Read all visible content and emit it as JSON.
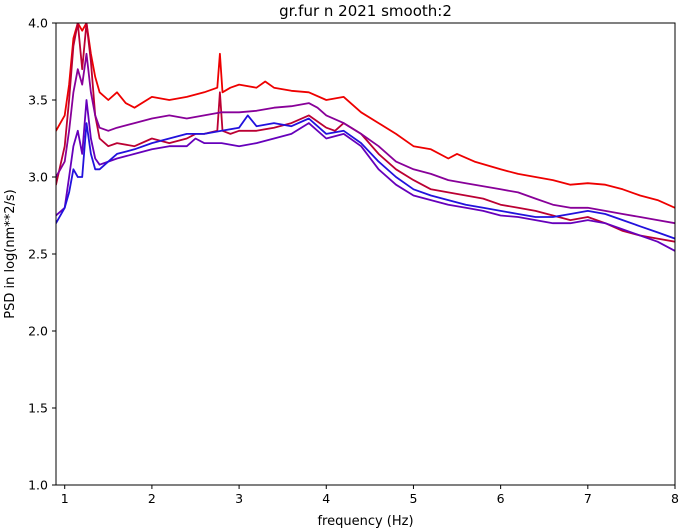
{
  "chart_data": {
    "type": "line",
    "title": "gr.fur n 2021 smooth:2",
    "xlabel": "frequency (Hz)",
    "ylabel": "PSD in log(nm**2/s)",
    "xlim": [
      0.9,
      8.0
    ],
    "ylim": [
      1.0,
      4.0
    ],
    "xticks": [
      1,
      2,
      3,
      4,
      5,
      6,
      7,
      8
    ],
    "xtick_labels": [
      "1",
      "2",
      "3",
      "4",
      "5",
      "6",
      "7",
      "8"
    ],
    "yticks": [
      1.0,
      1.5,
      2.0,
      2.5,
      3.0,
      3.5,
      4.0
    ],
    "ytick_labels": [
      "1.0",
      "1.5",
      "2.0",
      "2.5",
      "3.0",
      "3.5",
      "4.0"
    ],
    "grid": false,
    "legend": "none",
    "series": [
      {
        "color": "#ee0000",
        "x": [
          0.9,
          1.0,
          1.05,
          1.1,
          1.15,
          1.2,
          1.25,
          1.3,
          1.35,
          1.4,
          1.5,
          1.6,
          1.7,
          1.8,
          2.0,
          2.2,
          2.4,
          2.6,
          2.75,
          2.78,
          2.81,
          2.9,
          3.0,
          3.2,
          3.3,
          3.4,
          3.6,
          3.8,
          4.0,
          4.2,
          4.4,
          4.6,
          4.8,
          5.0,
          5.2,
          5.4,
          5.5,
          5.7,
          6.0,
          6.2,
          6.4,
          6.6,
          6.8,
          7.0,
          7.2,
          7.4,
          7.6,
          7.8,
          8.0
        ],
        "y": [
          3.3,
          3.4,
          3.6,
          3.9,
          4.0,
          3.95,
          4.0,
          3.8,
          3.65,
          3.55,
          3.5,
          3.55,
          3.48,
          3.45,
          3.52,
          3.5,
          3.52,
          3.55,
          3.58,
          3.8,
          3.55,
          3.58,
          3.6,
          3.58,
          3.62,
          3.58,
          3.56,
          3.55,
          3.5,
          3.52,
          3.42,
          3.35,
          3.28,
          3.2,
          3.18,
          3.12,
          3.15,
          3.1,
          3.05,
          3.02,
          3.0,
          2.98,
          2.95,
          2.96,
          2.95,
          2.92,
          2.88,
          2.85,
          2.8
        ]
      },
      {
        "color": "#bb0033",
        "x": [
          0.9,
          1.0,
          1.05,
          1.1,
          1.15,
          1.2,
          1.25,
          1.3,
          1.35,
          1.4,
          1.5,
          1.6,
          1.8,
          2.0,
          2.2,
          2.4,
          2.5,
          2.6,
          2.75,
          2.78,
          2.81,
          2.9,
          3.0,
          3.2,
          3.4,
          3.6,
          3.8,
          4.0,
          4.1,
          4.2,
          4.4,
          4.6,
          4.8,
          5.0,
          5.2,
          5.4,
          5.6,
          5.8,
          6.0,
          6.2,
          6.4,
          6.6,
          6.8,
          7.0,
          7.2,
          7.4,
          7.6,
          7.8,
          8.0
        ],
        "y": [
          2.95,
          3.2,
          3.5,
          3.85,
          4.0,
          3.7,
          4.0,
          3.75,
          3.4,
          3.25,
          3.2,
          3.22,
          3.2,
          3.25,
          3.22,
          3.25,
          3.28,
          3.28,
          3.3,
          3.55,
          3.3,
          3.28,
          3.3,
          3.3,
          3.32,
          3.35,
          3.4,
          3.32,
          3.3,
          3.35,
          3.28,
          3.15,
          3.05,
          2.98,
          2.92,
          2.9,
          2.88,
          2.86,
          2.82,
          2.8,
          2.78,
          2.75,
          2.72,
          2.74,
          2.7,
          2.65,
          2.62,
          2.6,
          2.58
        ]
      },
      {
        "color": "#880099",
        "x": [
          0.9,
          1.0,
          1.05,
          1.1,
          1.15,
          1.2,
          1.25,
          1.3,
          1.35,
          1.4,
          1.5,
          1.6,
          1.8,
          2.0,
          2.2,
          2.4,
          2.6,
          2.8,
          3.0,
          3.2,
          3.4,
          3.6,
          3.8,
          3.9,
          4.0,
          4.2,
          4.4,
          4.6,
          4.8,
          5.0,
          5.2,
          5.4,
          5.6,
          5.8,
          6.0,
          6.2,
          6.4,
          6.6,
          6.8,
          7.0,
          7.2,
          7.4,
          7.6,
          7.8,
          8.0
        ],
        "y": [
          3.0,
          3.1,
          3.3,
          3.55,
          3.7,
          3.6,
          3.8,
          3.55,
          3.4,
          3.32,
          3.3,
          3.32,
          3.35,
          3.38,
          3.4,
          3.38,
          3.4,
          3.42,
          3.42,
          3.43,
          3.45,
          3.46,
          3.48,
          3.45,
          3.4,
          3.35,
          3.28,
          3.2,
          3.1,
          3.05,
          3.02,
          2.98,
          2.96,
          2.94,
          2.92,
          2.9,
          2.86,
          2.82,
          2.8,
          2.8,
          2.78,
          2.76,
          2.74,
          2.72,
          2.7
        ]
      },
      {
        "color": "#6600bb",
        "x": [
          0.9,
          1.0,
          1.05,
          1.1,
          1.15,
          1.2,
          1.25,
          1.3,
          1.35,
          1.4,
          1.5,
          1.6,
          1.8,
          2.0,
          2.2,
          2.4,
          2.5,
          2.6,
          2.8,
          3.0,
          3.2,
          3.4,
          3.6,
          3.8,
          4.0,
          4.2,
          4.4,
          4.6,
          4.8,
          5.0,
          5.2,
          5.4,
          5.6,
          5.8,
          6.0,
          6.2,
          6.4,
          6.6,
          6.8,
          7.0,
          7.2,
          7.4,
          7.6,
          7.8,
          8.0
        ],
        "y": [
          2.75,
          2.8,
          3.0,
          3.2,
          3.3,
          3.15,
          3.5,
          3.25,
          3.12,
          3.08,
          3.1,
          3.12,
          3.15,
          3.18,
          3.2,
          3.2,
          3.25,
          3.22,
          3.22,
          3.2,
          3.22,
          3.25,
          3.28,
          3.35,
          3.25,
          3.28,
          3.2,
          3.05,
          2.95,
          2.88,
          2.85,
          2.82,
          2.8,
          2.78,
          2.75,
          2.74,
          2.72,
          2.7,
          2.7,
          2.72,
          2.7,
          2.66,
          2.62,
          2.58,
          2.52
        ]
      },
      {
        "color": "#2211dd",
        "x": [
          0.9,
          1.0,
          1.05,
          1.1,
          1.15,
          1.2,
          1.25,
          1.3,
          1.35,
          1.4,
          1.5,
          1.6,
          1.8,
          2.0,
          2.2,
          2.4,
          2.6,
          2.8,
          3.0,
          3.1,
          3.2,
          3.4,
          3.6,
          3.8,
          4.0,
          4.2,
          4.4,
          4.6,
          4.8,
          5.0,
          5.2,
          5.4,
          5.6,
          5.8,
          6.0,
          6.2,
          6.4,
          6.6,
          6.8,
          7.0,
          7.2,
          7.4,
          7.6,
          7.8,
          8.0
        ],
        "y": [
          2.7,
          2.8,
          2.9,
          3.05,
          3.0,
          3.0,
          3.35,
          3.15,
          3.05,
          3.05,
          3.1,
          3.15,
          3.18,
          3.22,
          3.25,
          3.28,
          3.28,
          3.3,
          3.32,
          3.4,
          3.33,
          3.35,
          3.33,
          3.38,
          3.28,
          3.3,
          3.22,
          3.1,
          3.0,
          2.92,
          2.88,
          2.85,
          2.82,
          2.8,
          2.78,
          2.76,
          2.74,
          2.74,
          2.76,
          2.78,
          2.76,
          2.72,
          2.68,
          2.64,
          2.6
        ]
      }
    ]
  }
}
